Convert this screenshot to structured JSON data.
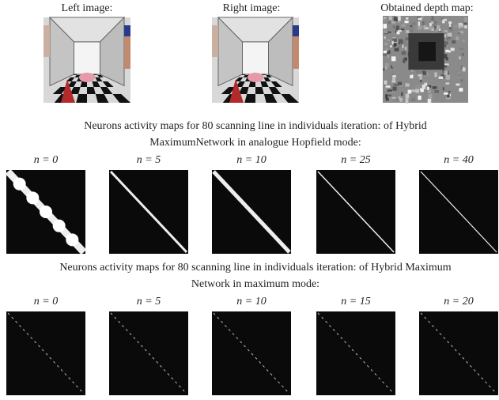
{
  "top_images": [
    {
      "label": "Left image:"
    },
    {
      "label": "Right image:"
    },
    {
      "label": "Obtained depth map:"
    }
  ],
  "sections": [
    {
      "caption_lines": [
        "Neurons activity maps for 80 scanning line in individuals iteration: of Hybrid",
        "MaximumNetwork in analogue Hopfield mode:"
      ],
      "panels": [
        {
          "label": "n = 0"
        },
        {
          "label": "n = 5"
        },
        {
          "label": "n = 10"
        },
        {
          "label": "n = 25"
        },
        {
          "label": "n = 40"
        }
      ]
    },
    {
      "caption_lines": [
        "Neurons activity maps for 80 scanning line in individuals iteration: of Hybrid Maximum",
        "Network in maximum mode:"
      ],
      "panels": [
        {
          "label": "n = 0"
        },
        {
          "label": "n = 5"
        },
        {
          "label": "n = 10"
        },
        {
          "label": "n = 15"
        },
        {
          "label": "n = 20"
        }
      ]
    }
  ]
}
